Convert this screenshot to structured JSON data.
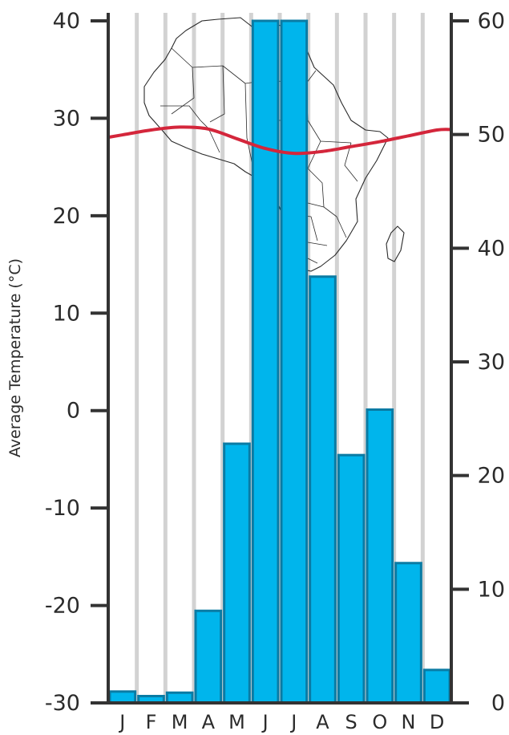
{
  "chart_data": {
    "type": "bar+line",
    "categories": [
      "J",
      "F",
      "M",
      "A",
      "M",
      "J",
      "J",
      "A",
      "S",
      "O",
      "N",
      "D"
    ],
    "series": [
      {
        "type": "bar",
        "axis": "right",
        "values": [
          1.0,
          0.6,
          0.9,
          8.1,
          22.8,
          60.0,
          60.0,
          37.5,
          21.8,
          25.8,
          12.3,
          2.9
        ]
      },
      {
        "type": "line",
        "axis": "left",
        "values": [
          28.3,
          28.8,
          29.1,
          28.9,
          27.9,
          26.9,
          26.4,
          26.6,
          27.1,
          27.6,
          28.2,
          28.8
        ]
      }
    ],
    "y_left": {
      "label": "Average Temperature (°C)",
      "range": [
        -30,
        40
      ],
      "ticks": [
        "40",
        "30",
        "20",
        "10",
        "0",
        "-10",
        "-20",
        "-30"
      ]
    },
    "y_right": {
      "label": "",
      "range": [
        0,
        60
      ],
      "ticks": [
        "60",
        "50",
        "40",
        "30",
        "20",
        "10",
        "0"
      ]
    },
    "grid": "vertical-lines",
    "legend": "none",
    "background": "outline map of Africa"
  },
  "colors": {
    "bar_fill": "#00b5ec",
    "bar_stroke": "#0a7ba4",
    "line": "#d4263b",
    "axis": "#333333",
    "grid": "#d2d2d2",
    "map": "#2a2a2a"
  }
}
